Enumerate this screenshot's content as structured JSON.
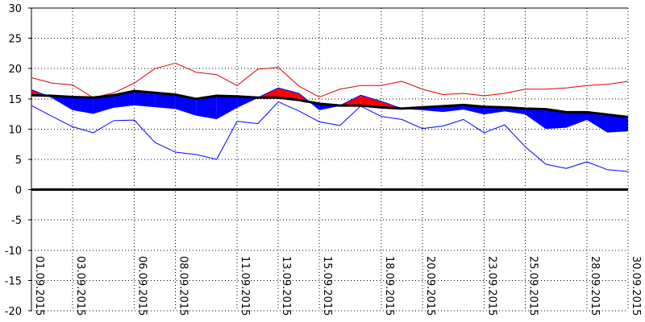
{
  "chart_data": {
    "type": "area",
    "title": "",
    "xlabel": "",
    "ylabel": "",
    "ylim": [
      -20,
      30
    ],
    "yticks": [
      30,
      25,
      20,
      15,
      10,
      5,
      0,
      -5,
      -10,
      -15,
      -20
    ],
    "grid": true,
    "legend": "none",
    "x_tick_labels": [
      "01.09.2015",
      "03.09.2015",
      "06.09.2015",
      "08.09.2015",
      "11.09.2015",
      "13.09.2015",
      "15.09.2015",
      "18.09.2015",
      "20.09.2015",
      "23.09.2015",
      "25.09.2015",
      "28.09.2015",
      "30.09.2015"
    ],
    "x_tick_days": [
      1,
      3,
      6,
      8,
      11,
      13,
      15,
      18,
      20,
      23,
      25,
      28,
      30
    ],
    "days": [
      1,
      2,
      3,
      4,
      5,
      6,
      7,
      8,
      9,
      10,
      11,
      12,
      13,
      14,
      15,
      16,
      17,
      18,
      19,
      20,
      21,
      22,
      23,
      24,
      25,
      26,
      27,
      28,
      29,
      30
    ],
    "series": [
      {
        "key": "max",
        "color": "#dd0000",
        "values": [
          18.5,
          17.6,
          17.3,
          15.2,
          16.0,
          17.6,
          20.0,
          20.9,
          19.4,
          19.0,
          17.2,
          19.9,
          20.2,
          17.1,
          15.3,
          16.6,
          17.2,
          17.2,
          17.9,
          16.6,
          15.7,
          15.9,
          15.5,
          15.9,
          16.6,
          16.6,
          16.8,
          17.2,
          17.4,
          17.9
        ]
      },
      {
        "key": "mean",
        "color": "#0000ff",
        "values": [
          16.5,
          15.2,
          13.2,
          12.6,
          13.6,
          14.0,
          13.7,
          13.4,
          12.3,
          11.7,
          13.6,
          15.2,
          16.8,
          15.9,
          13.2,
          13.9,
          15.6,
          14.6,
          13.4,
          13.2,
          12.9,
          13.3,
          12.5,
          13.0,
          12.5,
          10.1,
          10.3,
          11.6,
          9.5,
          9.7
        ]
      },
      {
        "key": "normal",
        "color": "#000000",
        "values": [
          15.6,
          15.5,
          15.3,
          15.2,
          15.6,
          16.3,
          16.0,
          15.7,
          15.0,
          15.5,
          15.4,
          15.2,
          15.2,
          14.8,
          14.2,
          13.9,
          13.9,
          13.6,
          13.4,
          13.6,
          13.8,
          14.0,
          13.7,
          13.6,
          13.4,
          13.3,
          12.8,
          12.8,
          12.4,
          12.0
        ]
      },
      {
        "key": "min",
        "color": "#0000ff",
        "values": [
          13.9,
          12.1,
          10.4,
          9.4,
          11.4,
          11.5,
          7.8,
          6.2,
          5.8,
          5.0,
          11.3,
          10.9,
          14.5,
          13.0,
          11.2,
          10.6,
          13.8,
          12.1,
          11.6,
          10.1,
          10.5,
          11.6,
          9.4,
          10.7,
          7.1,
          4.2,
          3.5,
          4.6,
          3.3,
          3.0
        ]
      }
    ],
    "above_normal_color": "#ff0000",
    "below_normal_color": "#0000ff"
  }
}
